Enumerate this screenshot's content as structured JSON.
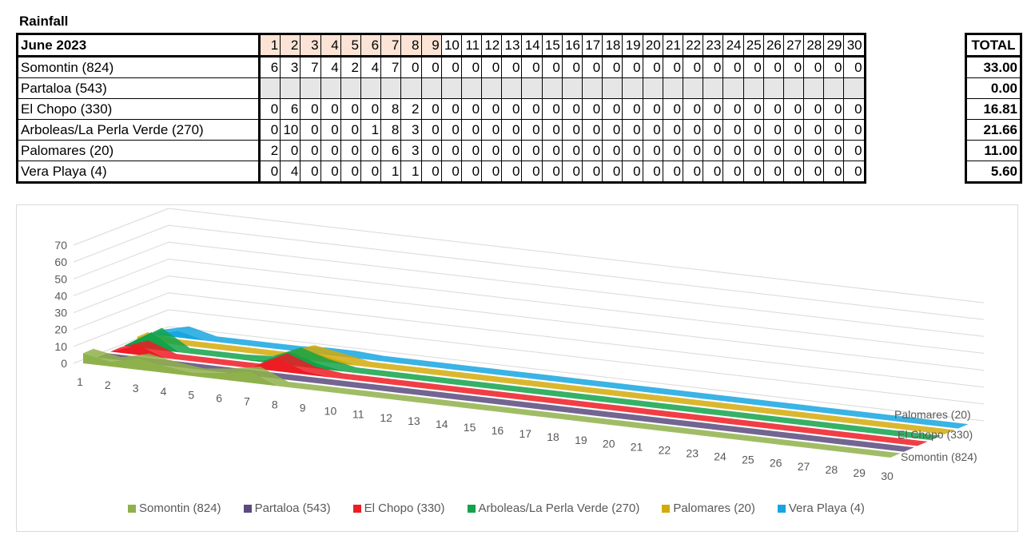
{
  "title": "Rainfall",
  "table": {
    "corner": "June 2023",
    "days": [
      "1",
      "2",
      "3",
      "4",
      "5",
      "6",
      "7",
      "8",
      "9",
      "10",
      "11",
      "12",
      "13",
      "14",
      "15",
      "16",
      "17",
      "18",
      "19",
      "20",
      "21",
      "22",
      "23",
      "24",
      "25",
      "26",
      "27",
      "28",
      "29",
      "30"
    ],
    "rows": [
      {
        "name": "Somontin (824)",
        "values": [
          "6",
          "3",
          "7",
          "4",
          "2",
          "4",
          "7",
          "0",
          "0",
          "0",
          "0",
          "0",
          "0",
          "0",
          "0",
          "0",
          "0",
          "0",
          "0",
          "0",
          "0",
          "0",
          "0",
          "0",
          "0",
          "0",
          "0",
          "0",
          "0",
          "0"
        ],
        "total": "33.00"
      },
      {
        "name": "Partaloa (543)",
        "values": [
          "",
          "",
          "",
          "",
          "",
          "",
          "",
          "",
          "",
          "",
          "",
          "",
          "",
          "",
          "",
          "",
          "",
          "",
          "",
          "",
          "",
          "",
          "",
          "",
          "",
          "",
          "",
          "",
          "",
          ""
        ],
        "total": "0.00"
      },
      {
        "name": "El Chopo (330)",
        "values": [
          "0",
          "6",
          "0",
          "0",
          "0",
          "0",
          "8",
          "2",
          "0",
          "0",
          "0",
          "0",
          "0",
          "0",
          "0",
          "0",
          "0",
          "0",
          "0",
          "0",
          "0",
          "0",
          "0",
          "0",
          "0",
          "0",
          "0",
          "0",
          "0",
          "0"
        ],
        "total": "16.81"
      },
      {
        "name": "Arboleas/La Perla Verde (270)",
        "values": [
          "0",
          "10",
          "0",
          "0",
          "0",
          "1",
          "8",
          "3",
          "0",
          "0",
          "0",
          "0",
          "0",
          "0",
          "0",
          "0",
          "0",
          "0",
          "0",
          "0",
          "0",
          "0",
          "0",
          "0",
          "0",
          "0",
          "0",
          "0",
          "0",
          "0"
        ],
        "total": "21.66"
      },
      {
        "name": "Palomares (20)",
        "values": [
          "2",
          "0",
          "0",
          "0",
          "0",
          "0",
          "6",
          "3",
          "0",
          "0",
          "0",
          "0",
          "0",
          "0",
          "0",
          "0",
          "0",
          "0",
          "0",
          "0",
          "0",
          "0",
          "0",
          "0",
          "0",
          "0",
          "0",
          "0",
          "0",
          "0"
        ],
        "total": "11.00"
      },
      {
        "name": "Vera Playa (4)",
        "values": [
          "0",
          "4",
          "0",
          "0",
          "0",
          "0",
          "1",
          "1",
          "0",
          "0",
          "0",
          "0",
          "0",
          "0",
          "0",
          "0",
          "0",
          "0",
          "0",
          "0",
          "0",
          "0",
          "0",
          "0",
          "0",
          "0",
          "0",
          "0",
          "0",
          "0"
        ],
        "total": "5.60"
      }
    ],
    "total_header": "TOTAL"
  },
  "chart_data": {
    "type": "area",
    "title": "",
    "categories": [
      "1",
      "2",
      "3",
      "4",
      "5",
      "6",
      "7",
      "8",
      "9",
      "10",
      "11",
      "12",
      "13",
      "14",
      "15",
      "16",
      "17",
      "18",
      "19",
      "20",
      "21",
      "22",
      "23",
      "24",
      "25",
      "26",
      "27",
      "28",
      "29",
      "30"
    ],
    "ylim": [
      0,
      70
    ],
    "yticks": [
      "0",
      "10",
      "20",
      "30",
      "40",
      "50",
      "60",
      "70"
    ],
    "depth_labels": [
      "Somontin (824)",
      "El Chopo (330)",
      "Palomares (20)"
    ],
    "grid": true,
    "legend": "bottom",
    "series": [
      {
        "name": "Somontin (824)",
        "color": "#8fb14b",
        "values": [
          6,
          3,
          7,
          4,
          2,
          4,
          7,
          0,
          0,
          0,
          0,
          0,
          0,
          0,
          0,
          0,
          0,
          0,
          0,
          0,
          0,
          0,
          0,
          0,
          0,
          0,
          0,
          0,
          0,
          0
        ]
      },
      {
        "name": "Partaloa (543)",
        "color": "#5b4a7e",
        "values": [
          0,
          0,
          0,
          0,
          0,
          0,
          0,
          0,
          0,
          0,
          0,
          0,
          0,
          0,
          0,
          0,
          0,
          0,
          0,
          0,
          0,
          0,
          0,
          0,
          0,
          0,
          0,
          0,
          0,
          0
        ]
      },
      {
        "name": "El Chopo (330)",
        "color": "#ee1c25",
        "values": [
          0,
          6,
          0,
          0,
          0,
          0,
          8,
          2,
          0,
          0,
          0,
          0,
          0,
          0,
          0,
          0,
          0,
          0,
          0,
          0,
          0,
          0,
          0,
          0,
          0,
          0,
          0,
          0,
          0,
          0
        ]
      },
      {
        "name": "Arboleas/La Perla Verde (270)",
        "color": "#13a34a",
        "values": [
          0,
          10,
          0,
          0,
          0,
          1,
          8,
          3,
          0,
          0,
          0,
          0,
          0,
          0,
          0,
          0,
          0,
          0,
          0,
          0,
          0,
          0,
          0,
          0,
          0,
          0,
          0,
          0,
          0,
          0
        ]
      },
      {
        "name": "Palomares (20)",
        "color": "#d4aa0b",
        "values": [
          2,
          0,
          0,
          0,
          0,
          0,
          6,
          3,
          0,
          0,
          0,
          0,
          0,
          0,
          0,
          0,
          0,
          0,
          0,
          0,
          0,
          0,
          0,
          0,
          0,
          0,
          0,
          0,
          0,
          0
        ]
      },
      {
        "name": "Vera Playa (4)",
        "color": "#18a6e0",
        "values": [
          0,
          4,
          0,
          0,
          0,
          0,
          1,
          1,
          0,
          0,
          0,
          0,
          0,
          0,
          0,
          0,
          0,
          0,
          0,
          0,
          0,
          0,
          0,
          0,
          0,
          0,
          0,
          0,
          0,
          0
        ]
      }
    ]
  }
}
